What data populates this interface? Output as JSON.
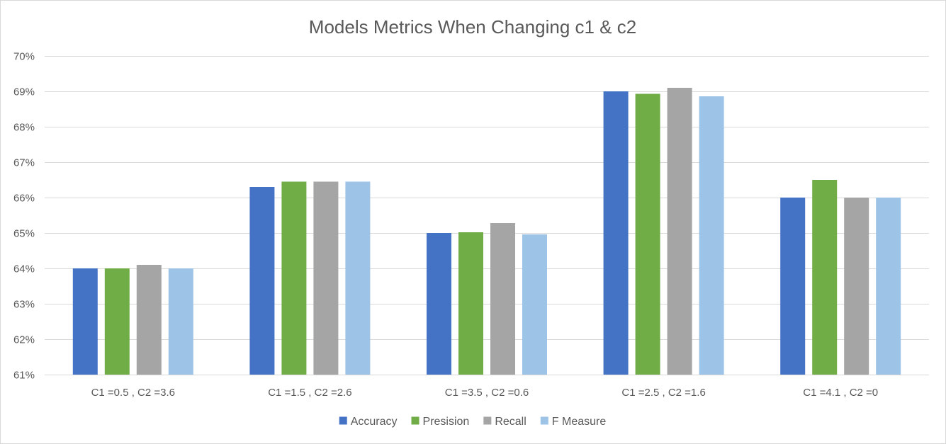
{
  "chart_data": {
    "type": "bar",
    "title": "Models Metrics When Changing c1 & c2",
    "xlabel": "",
    "ylabel": "",
    "ylim": [
      0.61,
      0.7
    ],
    "y_tick_labels": [
      "61%",
      "62%",
      "63%",
      "64%",
      "65%",
      "66%",
      "67%",
      "68%",
      "69%",
      "70%"
    ],
    "y_ticks": [
      0.61,
      0.62,
      0.63,
      0.64,
      0.65,
      0.66,
      0.67,
      0.68,
      0.69,
      0.7
    ],
    "grid": true,
    "legend_position": "bottom",
    "categories": [
      "C1 =0.5 , C2 =3.6",
      "C1 =1.5 , C2 =2.6",
      "C1 =3.5 , C2 =0.6",
      "C1 =2.5 , C2 =1.6",
      "C1 =4.1 , C2 =0"
    ],
    "series": [
      {
        "name": "Accuracy",
        "color": "#4472c4",
        "values": [
          0.64,
          0.663,
          0.65,
          0.69,
          0.66
        ]
      },
      {
        "name": "Presision",
        "color": "#70ad47",
        "values": [
          0.64,
          0.6645,
          0.6502,
          0.6893,
          0.665
        ]
      },
      {
        "name": "Recall",
        "color": "#a5a5a5",
        "values": [
          0.641,
          0.6645,
          0.6528,
          0.691,
          0.66
        ]
      },
      {
        "name": "F Measure",
        "color": "#9dc3e6",
        "values": [
          0.64,
          0.6645,
          0.6496,
          0.6886,
          0.66
        ]
      }
    ],
    "gridline_color": "#d9d9d9",
    "text_color": "#595959"
  }
}
